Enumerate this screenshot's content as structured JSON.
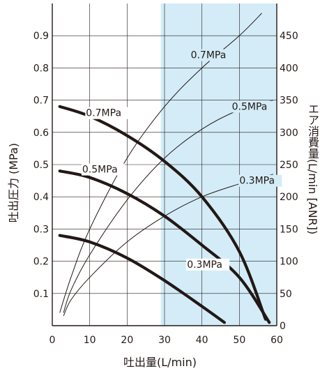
{
  "chart_data": {
    "type": "line",
    "xlabel": "吐出量(L/min)",
    "ylabel_left": "吐出圧力 (MPa)",
    "ylabel_right": "エア消費量(L/min [ANR])",
    "xlim": [
      0,
      60
    ],
    "ylim_left": [
      0,
      1.0
    ],
    "ylim_right": [
      0,
      500
    ],
    "x_ticks": [
      "0",
      "10",
      "20",
      "30",
      "40",
      "50",
      "60"
    ],
    "y_left_ticks": [
      "0.1",
      "0.2",
      "0.3",
      "0.4",
      "0.5",
      "0.6",
      "0.7",
      "0.8",
      "0.9"
    ],
    "y_right_ticks": [
      "0",
      "50",
      "100",
      "150",
      "200",
      "250",
      "300",
      "350",
      "400",
      "450"
    ],
    "shaded_region": {
      "x_from": 29,
      "x_to": 60,
      "color": "#d3ecf8"
    },
    "discharge_pressure_series": [
      {
        "name": "0.7MPa",
        "axis": "left",
        "x": [
          2,
          10,
          20,
          30,
          40,
          50,
          57
        ],
        "y": [
          0.68,
          0.65,
          0.59,
          0.51,
          0.4,
          0.23,
          0.02
        ]
      },
      {
        "name": "0.5MPa",
        "axis": "left",
        "x": [
          2,
          10,
          20,
          30,
          40,
          50,
          58
        ],
        "y": [
          0.48,
          0.46,
          0.41,
          0.34,
          0.25,
          0.15,
          0.01
        ]
      },
      {
        "name": "0.3MPa",
        "axis": "left",
        "x": [
          2,
          10,
          20,
          30,
          40,
          46
        ],
        "y": [
          0.28,
          0.26,
          0.21,
          0.14,
          0.06,
          0.01
        ]
      }
    ],
    "air_consumption_series": [
      {
        "name": "0.7MPa",
        "axis": "right",
        "x": [
          2,
          5,
          10,
          20,
          30,
          40,
          50,
          56
        ],
        "y": [
          20,
          75,
          150,
          260,
          340,
          400,
          450,
          485
        ]
      },
      {
        "name": "0.5MPa",
        "axis": "right",
        "x": [
          3,
          5,
          10,
          20,
          30,
          40,
          50,
          59
        ],
        "y": [
          20,
          55,
          110,
          195,
          260,
          305,
          335,
          350
        ]
      },
      {
        "name": "0.3MPa",
        "axis": "right",
        "x": [
          3,
          5,
          10,
          20,
          30,
          40,
          50,
          59
        ],
        "y": [
          15,
          40,
          75,
          130,
          170,
          200,
          220,
          235
        ]
      }
    ],
    "annotations": [
      {
        "text": "0.7MPa",
        "series": "discharge_pressure",
        "x": 9,
        "y": 0.65
      },
      {
        "text": "0.5MPa",
        "series": "discharge_pressure",
        "x": 8,
        "y": 0.475
      },
      {
        "text": "0.3MPa",
        "series": "discharge_pressure",
        "x": 36,
        "y": 0.18
      },
      {
        "text": "0.7MPa",
        "series": "air_consumption",
        "x": 37,
        "y": 415
      },
      {
        "text": "0.5MPa",
        "series": "air_consumption",
        "x": 48,
        "y": 335
      },
      {
        "text": "0.3MPa",
        "series": "air_consumption",
        "x": 50,
        "y": 220
      }
    ],
    "grid": true,
    "colors": {
      "curve": "#231815",
      "grid": "#231815",
      "shade": "#d3ecf8"
    }
  }
}
